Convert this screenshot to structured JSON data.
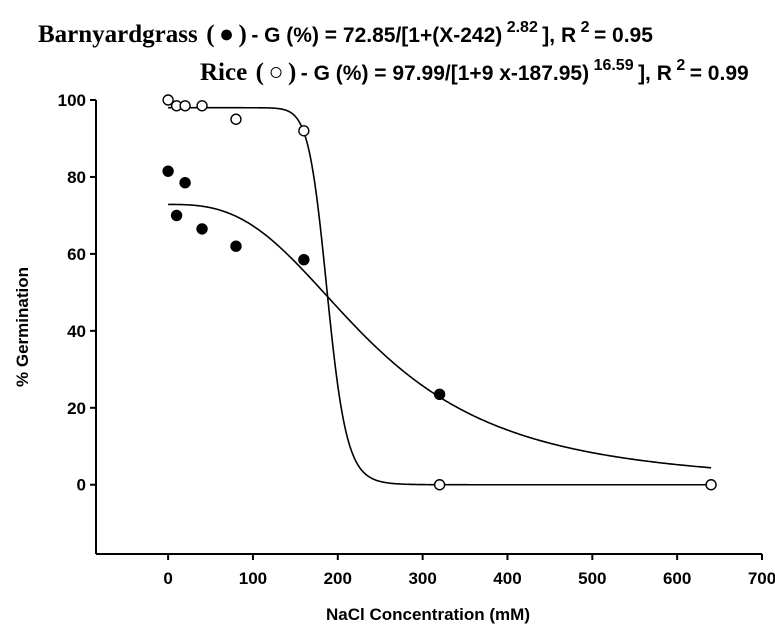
{
  "chart_data": {
    "type": "scatter",
    "equations": {
      "barnyard": {
        "name": "Barnyardgrass",
        "formula_a": " - G (%) = 72.85/[1+(X-242)",
        "exponent": "2.82",
        "formula_b": "], R",
        "r2_exp": "2",
        "r2_value": "= 0.95"
      },
      "rice": {
        "name": "Rice",
        "formula_a": " - G (%) = 97.99/[1+9 x-187.95)",
        "exponent": "16.59",
        "formula_b": "], R",
        "r2_exp": "2",
        "r2_value": "= 0.99"
      }
    },
    "xlabel": "NaCl Concentration (mM)",
    "ylabel": "% Germination",
    "xlim": [
      -85,
      700
    ],
    "ylim": [
      -18,
      100
    ],
    "x_ticks": [
      0,
      100,
      200,
      300,
      400,
      500,
      600,
      700
    ],
    "y_ticks": [
      0,
      20,
      40,
      60,
      80,
      100
    ],
    "series": [
      {
        "name": "Barnyardgrass",
        "marker": "filled-circle",
        "color": "#000000",
        "points": [
          {
            "x": 0,
            "y": 81.5
          },
          {
            "x": 10,
            "y": 70
          },
          {
            "x": 20,
            "y": 78.5
          },
          {
            "x": 40,
            "y": 66.5
          },
          {
            "x": 80,
            "y": 62
          },
          {
            "x": 160,
            "y": 58.5
          },
          {
            "x": 320,
            "y": 23.5
          }
        ],
        "fit": {
          "a": 72.85,
          "x0": 242,
          "b": 2.82,
          "xmin": 0,
          "xmax": 640
        }
      },
      {
        "name": "Rice",
        "marker": "open-circle",
        "color": "#000000",
        "points": [
          {
            "x": 0,
            "y": 100
          },
          {
            "x": 10,
            "y": 98.5
          },
          {
            "x": 20,
            "y": 98.5
          },
          {
            "x": 40,
            "y": 98.5
          },
          {
            "x": 80,
            "y": 95
          },
          {
            "x": 160,
            "y": 92
          },
          {
            "x": 320,
            "y": 0
          },
          {
            "x": 640,
            "y": 0
          }
        ],
        "fit": {
          "a": 97.99,
          "x0": 187.95,
          "b": 16.59,
          "xmin": 0,
          "xmax": 640
        }
      }
    ],
    "grid": false
  }
}
